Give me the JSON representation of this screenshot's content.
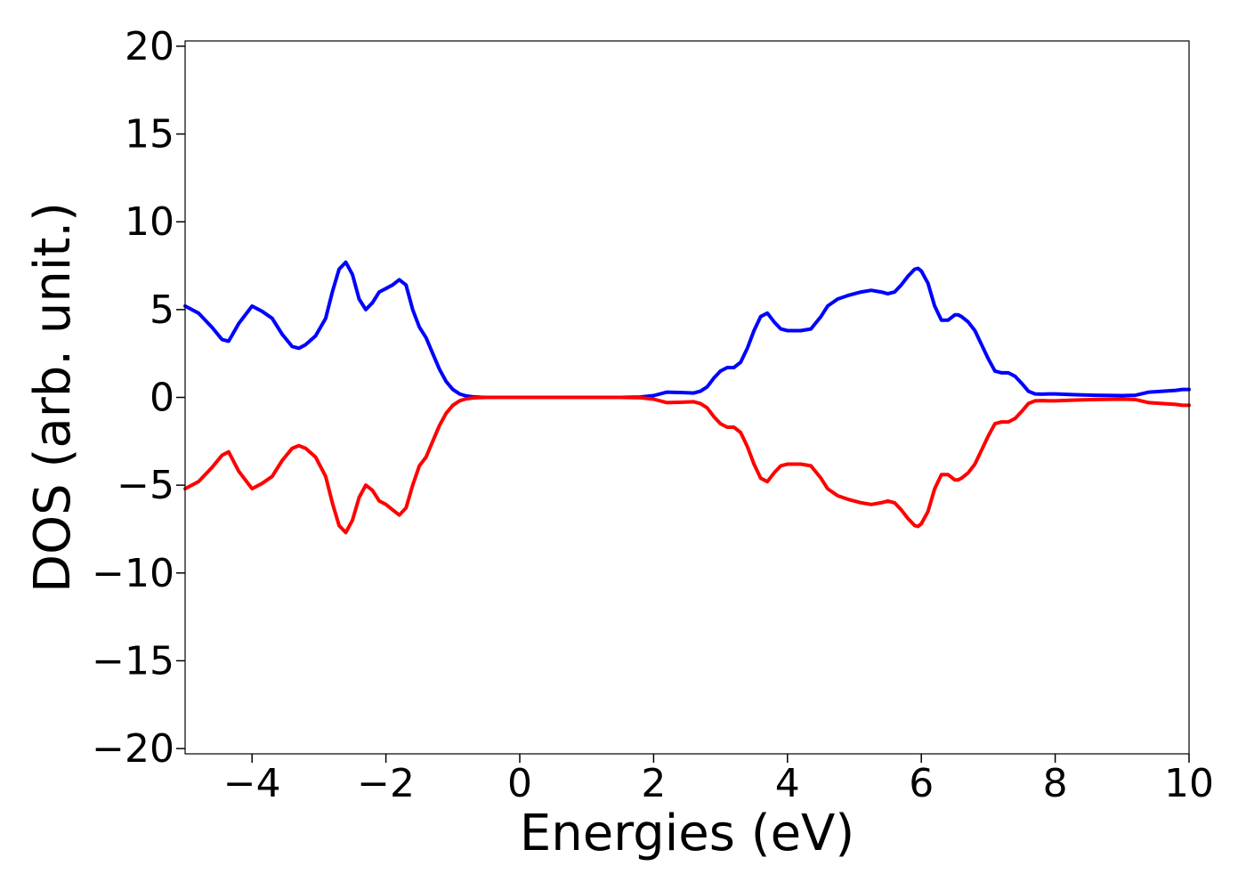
{
  "chart_data": {
    "type": "line",
    "title": "",
    "xlabel": "Energies (eV)",
    "ylabel": "DOS (arb. unit.)",
    "xlim": [
      -5,
      10
    ],
    "ylim": [
      -20.3,
      20.3
    ],
    "x_ticks": [
      -4,
      -2,
      0,
      2,
      4,
      6,
      8,
      10
    ],
    "x_tick_labels": [
      "−4",
      "−2",
      "0",
      "2",
      "4",
      "6",
      "8",
      "10"
    ],
    "y_ticks": [
      20,
      15,
      10,
      5,
      0,
      -5,
      -10,
      -15,
      -20
    ],
    "y_tick_labels": [
      "20",
      "15",
      "10",
      "5",
      "0",
      "−5",
      "−10",
      "−15",
      "−20"
    ],
    "grid": false,
    "legend": "none",
    "series": [
      {
        "color": "#0000ff",
        "x": [
          -5.0,
          -4.8,
          -4.6,
          -4.45,
          -4.35,
          -4.2,
          -4.0,
          -3.85,
          -3.7,
          -3.55,
          -3.4,
          -3.3,
          -3.2,
          -3.05,
          -2.9,
          -2.8,
          -2.7,
          -2.6,
          -2.5,
          -2.4,
          -2.3,
          -2.2,
          -2.1,
          -2.0,
          -1.9,
          -1.8,
          -1.7,
          -1.6,
          -1.5,
          -1.4,
          -1.3,
          -1.2,
          -1.1,
          -1.0,
          -0.9,
          -0.8,
          -0.7,
          -0.6,
          -0.5,
          -0.2,
          0.5,
          1.0,
          1.5,
          1.8,
          2.0,
          2.2,
          2.4,
          2.6,
          2.7,
          2.8,
          2.9,
          3.0,
          3.1,
          3.2,
          3.3,
          3.4,
          3.5,
          3.6,
          3.7,
          3.8,
          3.9,
          4.0,
          4.2,
          4.35,
          4.5,
          4.6,
          4.75,
          4.9,
          5.0,
          5.1,
          5.25,
          5.4,
          5.5,
          5.6,
          5.7,
          5.8,
          5.9,
          5.95,
          6.0,
          6.1,
          6.2,
          6.3,
          6.4,
          6.5,
          6.55,
          6.6,
          6.7,
          6.8,
          6.9,
          7.0,
          7.1,
          7.2,
          7.3,
          7.4,
          7.5,
          7.6,
          7.7,
          7.8,
          7.9,
          8.0,
          8.3,
          8.6,
          9.0,
          9.2,
          9.4,
          9.6,
          9.8,
          9.9,
          10.0
        ],
        "y": [
          5.2,
          4.8,
          4.0,
          3.3,
          3.2,
          4.2,
          5.2,
          4.9,
          4.5,
          3.6,
          2.9,
          2.8,
          3.0,
          3.5,
          4.5,
          6.0,
          7.3,
          7.7,
          7.0,
          5.6,
          5.0,
          5.4,
          6.0,
          6.2,
          6.4,
          6.7,
          6.4,
          5.0,
          4.0,
          3.4,
          2.5,
          1.6,
          0.9,
          0.45,
          0.2,
          0.08,
          0.03,
          0.01,
          0.0,
          0.0,
          0.0,
          0.0,
          0.0,
          0.02,
          0.1,
          0.3,
          0.28,
          0.25,
          0.35,
          0.6,
          1.1,
          1.5,
          1.7,
          1.7,
          2.0,
          2.8,
          3.8,
          4.6,
          4.8,
          4.3,
          3.9,
          3.8,
          3.8,
          3.9,
          4.6,
          5.2,
          5.6,
          5.8,
          5.9,
          6.0,
          6.1,
          6.0,
          5.9,
          6.0,
          6.4,
          6.9,
          7.3,
          7.35,
          7.2,
          6.5,
          5.2,
          4.4,
          4.4,
          4.7,
          4.7,
          4.6,
          4.3,
          3.8,
          3.0,
          2.2,
          1.5,
          1.4,
          1.4,
          1.2,
          0.8,
          0.35,
          0.2,
          0.18,
          0.2,
          0.2,
          0.15,
          0.12,
          0.1,
          0.12,
          0.3,
          0.35,
          0.4,
          0.45,
          0.45
        ]
      },
      {
        "color": "#ff0000",
        "x": [
          -5.0,
          -4.8,
          -4.6,
          -4.45,
          -4.35,
          -4.2,
          -4.0,
          -3.85,
          -3.7,
          -3.55,
          -3.4,
          -3.3,
          -3.2,
          -3.05,
          -2.9,
          -2.8,
          -2.7,
          -2.6,
          -2.5,
          -2.4,
          -2.3,
          -2.2,
          -2.1,
          -2.0,
          -1.9,
          -1.8,
          -1.7,
          -1.6,
          -1.5,
          -1.4,
          -1.3,
          -1.2,
          -1.1,
          -1.0,
          -0.9,
          -0.8,
          -0.7,
          -0.6,
          -0.5,
          -0.2,
          0.5,
          1.0,
          1.5,
          1.8,
          2.0,
          2.2,
          2.4,
          2.6,
          2.7,
          2.8,
          2.9,
          3.0,
          3.1,
          3.2,
          3.3,
          3.4,
          3.5,
          3.6,
          3.7,
          3.8,
          3.9,
          4.0,
          4.2,
          4.35,
          4.5,
          4.6,
          4.75,
          4.9,
          5.0,
          5.1,
          5.25,
          5.4,
          5.5,
          5.6,
          5.7,
          5.8,
          5.9,
          5.95,
          6.0,
          6.1,
          6.2,
          6.3,
          6.4,
          6.5,
          6.55,
          6.6,
          6.7,
          6.8,
          6.9,
          7.0,
          7.1,
          7.2,
          7.3,
          7.4,
          7.5,
          7.6,
          7.7,
          7.8,
          7.9,
          8.0,
          8.3,
          8.6,
          9.0,
          9.2,
          9.4,
          9.6,
          9.8,
          9.9,
          10.0
        ],
        "y": [
          -5.2,
          -4.8,
          -4.0,
          -3.3,
          -3.1,
          -4.2,
          -5.2,
          -4.9,
          -4.5,
          -3.6,
          -2.9,
          -2.75,
          -2.9,
          -3.4,
          -4.5,
          -6.0,
          -7.3,
          -7.7,
          -7.0,
          -5.7,
          -5.0,
          -5.3,
          -5.9,
          -6.1,
          -6.4,
          -6.7,
          -6.3,
          -5.0,
          -3.9,
          -3.4,
          -2.5,
          -1.6,
          -0.9,
          -0.45,
          -0.2,
          -0.08,
          -0.03,
          -0.01,
          0.0,
          0.0,
          0.0,
          0.0,
          0.0,
          -0.02,
          -0.1,
          -0.3,
          -0.28,
          -0.25,
          -0.35,
          -0.6,
          -1.1,
          -1.5,
          -1.7,
          -1.7,
          -2.0,
          -2.8,
          -3.8,
          -4.6,
          -4.8,
          -4.3,
          -3.9,
          -3.8,
          -3.8,
          -3.9,
          -4.6,
          -5.2,
          -5.6,
          -5.8,
          -5.9,
          -6.0,
          -6.1,
          -6.0,
          -5.9,
          -6.0,
          -6.4,
          -6.9,
          -7.3,
          -7.35,
          -7.2,
          -6.5,
          -5.2,
          -4.4,
          -4.4,
          -4.7,
          -4.7,
          -4.6,
          -4.3,
          -3.8,
          -3.0,
          -2.2,
          -1.5,
          -1.4,
          -1.4,
          -1.2,
          -0.8,
          -0.35,
          -0.2,
          -0.18,
          -0.2,
          -0.2,
          -0.15,
          -0.12,
          -0.1,
          -0.12,
          -0.3,
          -0.35,
          -0.4,
          -0.45,
          -0.45
        ]
      }
    ]
  }
}
